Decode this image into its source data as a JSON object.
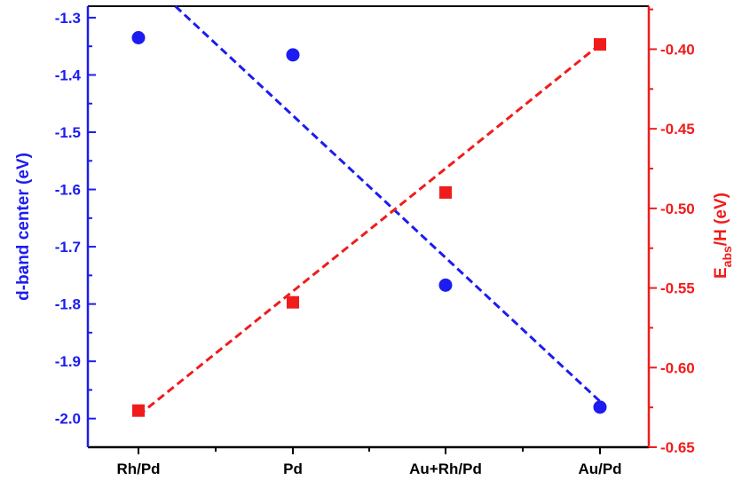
{
  "chart_data": {
    "type": "scatter",
    "categories": [
      "Rh/Pd",
      "Pd",
      "Au+Rh/Pd",
      "Au/Pd"
    ],
    "series": [
      {
        "axis": "left",
        "marker": "circle",
        "color": "#1c1cf0",
        "values": [
          -1.335,
          -1.365,
          -1.767,
          -1.98
        ]
      },
      {
        "axis": "right",
        "marker": "square",
        "color": "#f01c1c",
        "values": [
          -0.627,
          -0.559,
          -0.49,
          -0.397
        ]
      }
    ],
    "fit_lines": [
      {
        "axis": "left",
        "color": "#1c1cf0",
        "style": "dashed",
        "from": [
          0,
          -1.22
        ],
        "to": [
          3,
          -1.97
        ]
      },
      {
        "axis": "right",
        "color": "#f01c1c",
        "style": "dashed",
        "from": [
          0,
          -0.63
        ],
        "to": [
          3,
          -0.397
        ]
      }
    ],
    "left_axis": {
      "label": "d-band center (eV)",
      "color": "#1c1cf0",
      "range": [
        -2.05,
        -1.28
      ],
      "ticks": [
        -1.3,
        -1.4,
        -1.5,
        -1.6,
        -1.7,
        -1.8,
        -1.9,
        -2.0
      ],
      "tick_labels": [
        "-1.3",
        "-1.4",
        "-1.5",
        "-1.6",
        "-1.7",
        "-1.8",
        "-1.9",
        "-2.0"
      ]
    },
    "right_axis": {
      "label_main": "E",
      "label_sub": "abs",
      "label_rest": "/H (eV)",
      "color": "#f01c1c",
      "range": [
        -0.65,
        -0.373
      ],
      "ticks": [
        -0.4,
        -0.45,
        -0.5,
        -0.55,
        -0.6,
        -0.65
      ],
      "tick_labels": [
        "-0.40",
        "-0.45",
        "-0.50",
        "-0.55",
        "-0.60",
        "-0.65"
      ]
    },
    "grid": false
  }
}
